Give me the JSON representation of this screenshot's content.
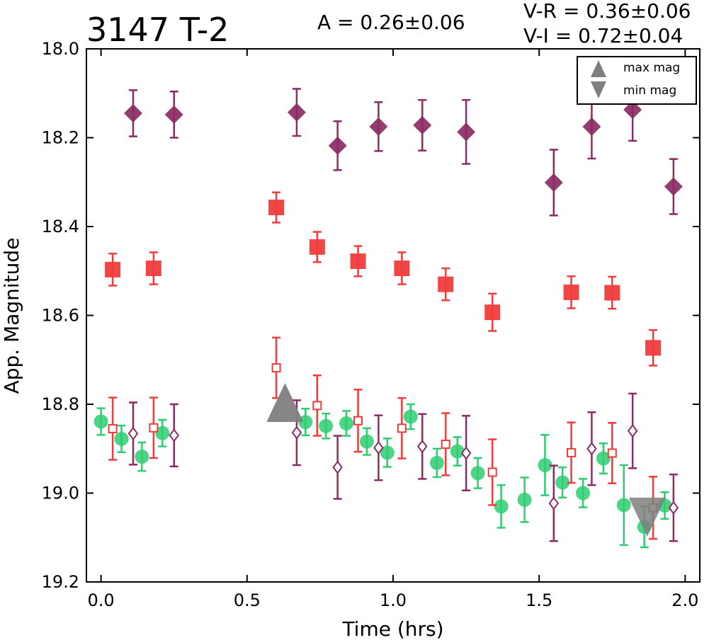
{
  "chart_data": {
    "type": "scatter",
    "title": "3147 T-2",
    "annotations": {
      "amplitude": "A  = 0.26±0.06",
      "v_r": "V-R = 0.36±0.06",
      "v_i": "V-I  = 0.72±0.04"
    },
    "xlabel": "Time (hrs)",
    "ylabel": "App. Magnitude",
    "xlim": [
      -0.05,
      2.05
    ],
    "ylim": [
      19.2,
      18.0
    ],
    "y_inverted": true,
    "x_ticks": [
      "0.0",
      "0.5",
      "1.0",
      "1.5",
      "2.0"
    ],
    "x_tick_values": [
      0.0,
      0.5,
      1.0,
      1.5,
      2.0
    ],
    "y_ticks": [
      "18.0",
      "18.2",
      "18.4",
      "18.6",
      "18.8",
      "19.0",
      "19.2"
    ],
    "y_tick_values": [
      18.0,
      18.2,
      18.4,
      18.6,
      18.8,
      19.0,
      19.2
    ],
    "grid": false,
    "legend": {
      "placement": "top-right",
      "entries": [
        {
          "label": "max mag",
          "marker": "triangle-up",
          "color": "#7f7f7f"
        },
        {
          "label": "min mag",
          "marker": "triangle-down",
          "color": "#7f7f7f"
        }
      ]
    },
    "series": [
      {
        "marker": "diamond-filled",
        "color": "#8b2b63",
        "points": [
          {
            "x": 0.11,
            "y": 18.145,
            "err": 0.052
          },
          {
            "x": 0.25,
            "y": 18.148,
            "err": 0.052
          },
          {
            "x": 0.67,
            "y": 18.143,
            "err": 0.053
          },
          {
            "x": 0.81,
            "y": 18.218,
            "err": 0.055
          },
          {
            "x": 0.95,
            "y": 18.175,
            "err": 0.055
          },
          {
            "x": 1.1,
            "y": 18.172,
            "err": 0.057
          },
          {
            "x": 1.25,
            "y": 18.187,
            "err": 0.072
          },
          {
            "x": 1.55,
            "y": 18.301,
            "err": 0.074
          },
          {
            "x": 1.68,
            "y": 18.175,
            "err": 0.072
          },
          {
            "x": 1.82,
            "y": 18.137,
            "err": 0.07
          },
          {
            "x": 1.96,
            "y": 18.31,
            "err": 0.062
          }
        ]
      },
      {
        "marker": "square-filled",
        "color": "#f03c3c",
        "points": [
          {
            "x": 0.04,
            "y": 18.497,
            "err": 0.036
          },
          {
            "x": 0.18,
            "y": 18.494,
            "err": 0.036
          },
          {
            "x": 0.6,
            "y": 18.357,
            "err": 0.034
          },
          {
            "x": 0.74,
            "y": 18.446,
            "err": 0.034
          },
          {
            "x": 0.88,
            "y": 18.478,
            "err": 0.034
          },
          {
            "x": 1.03,
            "y": 18.494,
            "err": 0.036
          },
          {
            "x": 1.18,
            "y": 18.53,
            "err": 0.036
          },
          {
            "x": 1.34,
            "y": 18.593,
            "err": 0.042
          },
          {
            "x": 1.61,
            "y": 18.548,
            "err": 0.036
          },
          {
            "x": 1.75,
            "y": 18.549,
            "err": 0.036
          },
          {
            "x": 1.89,
            "y": 18.673,
            "err": 0.04
          }
        ]
      },
      {
        "marker": "circle-filled",
        "color": "#2ecc71",
        "points": [
          {
            "x": 0.0,
            "y": 18.839,
            "err": 0.03
          },
          {
            "x": 0.07,
            "y": 18.878,
            "err": 0.03
          },
          {
            "x": 0.14,
            "y": 18.918,
            "err": 0.032
          },
          {
            "x": 0.21,
            "y": 18.865,
            "err": 0.03
          },
          {
            "x": 0.7,
            "y": 18.84,
            "err": 0.03
          },
          {
            "x": 0.77,
            "y": 18.849,
            "err": 0.028
          },
          {
            "x": 0.84,
            "y": 18.843,
            "err": 0.028
          },
          {
            "x": 0.91,
            "y": 18.884,
            "err": 0.03
          },
          {
            "x": 0.98,
            "y": 18.909,
            "err": 0.032
          },
          {
            "x": 1.06,
            "y": 18.828,
            "err": 0.028
          },
          {
            "x": 1.15,
            "y": 18.932,
            "err": 0.032
          },
          {
            "x": 1.22,
            "y": 18.906,
            "err": 0.032
          },
          {
            "x": 1.29,
            "y": 18.955,
            "err": 0.034
          },
          {
            "x": 1.37,
            "y": 19.03,
            "err": 0.048
          },
          {
            "x": 1.45,
            "y": 19.015,
            "err": 0.05
          },
          {
            "x": 1.52,
            "y": 18.937,
            "err": 0.068
          },
          {
            "x": 1.58,
            "y": 18.976,
            "err": 0.034
          },
          {
            "x": 1.65,
            "y": 19.0,
            "err": 0.032
          },
          {
            "x": 1.72,
            "y": 18.922,
            "err": 0.034
          },
          {
            "x": 1.79,
            "y": 19.027,
            "err": 0.09
          },
          {
            "x": 1.86,
            "y": 19.076,
            "err": 0.046
          },
          {
            "x": 1.93,
            "y": 19.028,
            "err": 0.03
          }
        ]
      },
      {
        "marker": "square-open",
        "color": "#f03c3c",
        "points": [
          {
            "x": 0.04,
            "y": 18.855,
            "err": 0.07
          },
          {
            "x": 0.18,
            "y": 18.853,
            "err": 0.068
          },
          {
            "x": 0.6,
            "y": 18.718,
            "err": 0.068
          },
          {
            "x": 0.74,
            "y": 18.803,
            "err": 0.068
          },
          {
            "x": 0.88,
            "y": 18.837,
            "err": 0.07
          },
          {
            "x": 1.03,
            "y": 18.854,
            "err": 0.068
          },
          {
            "x": 1.18,
            "y": 18.89,
            "err": 0.07
          },
          {
            "x": 1.34,
            "y": 18.953,
            "err": 0.074
          },
          {
            "x": 1.61,
            "y": 18.909,
            "err": 0.068
          },
          {
            "x": 1.75,
            "y": 18.91,
            "err": 0.068
          },
          {
            "x": 1.89,
            "y": 19.033,
            "err": 0.07
          }
        ]
      },
      {
        "marker": "diamond-open",
        "color": "#8b2b63",
        "points": [
          {
            "x": 0.11,
            "y": 18.866,
            "err": 0.07
          },
          {
            "x": 0.25,
            "y": 18.87,
            "err": 0.07
          },
          {
            "x": 0.67,
            "y": 18.864,
            "err": 0.073
          },
          {
            "x": 0.81,
            "y": 18.942,
            "err": 0.071
          },
          {
            "x": 0.95,
            "y": 18.898,
            "err": 0.073
          },
          {
            "x": 1.1,
            "y": 18.895,
            "err": 0.073
          },
          {
            "x": 1.25,
            "y": 18.91,
            "err": 0.084
          },
          {
            "x": 1.55,
            "y": 19.023,
            "err": 0.085
          },
          {
            "x": 1.68,
            "y": 18.9,
            "err": 0.082
          },
          {
            "x": 1.82,
            "y": 18.86,
            "err": 0.084
          },
          {
            "x": 1.96,
            "y": 19.033,
            "err": 0.075
          }
        ]
      }
    ],
    "extrema_markers": [
      {
        "kind": "max mag",
        "marker": "triangle-up",
        "x": 0.63,
        "y": 18.8,
        "color": "#7f7f7f"
      },
      {
        "kind": "min mag",
        "marker": "triangle-down",
        "x": 1.87,
        "y": 19.05,
        "color": "#7f7f7f"
      }
    ]
  }
}
